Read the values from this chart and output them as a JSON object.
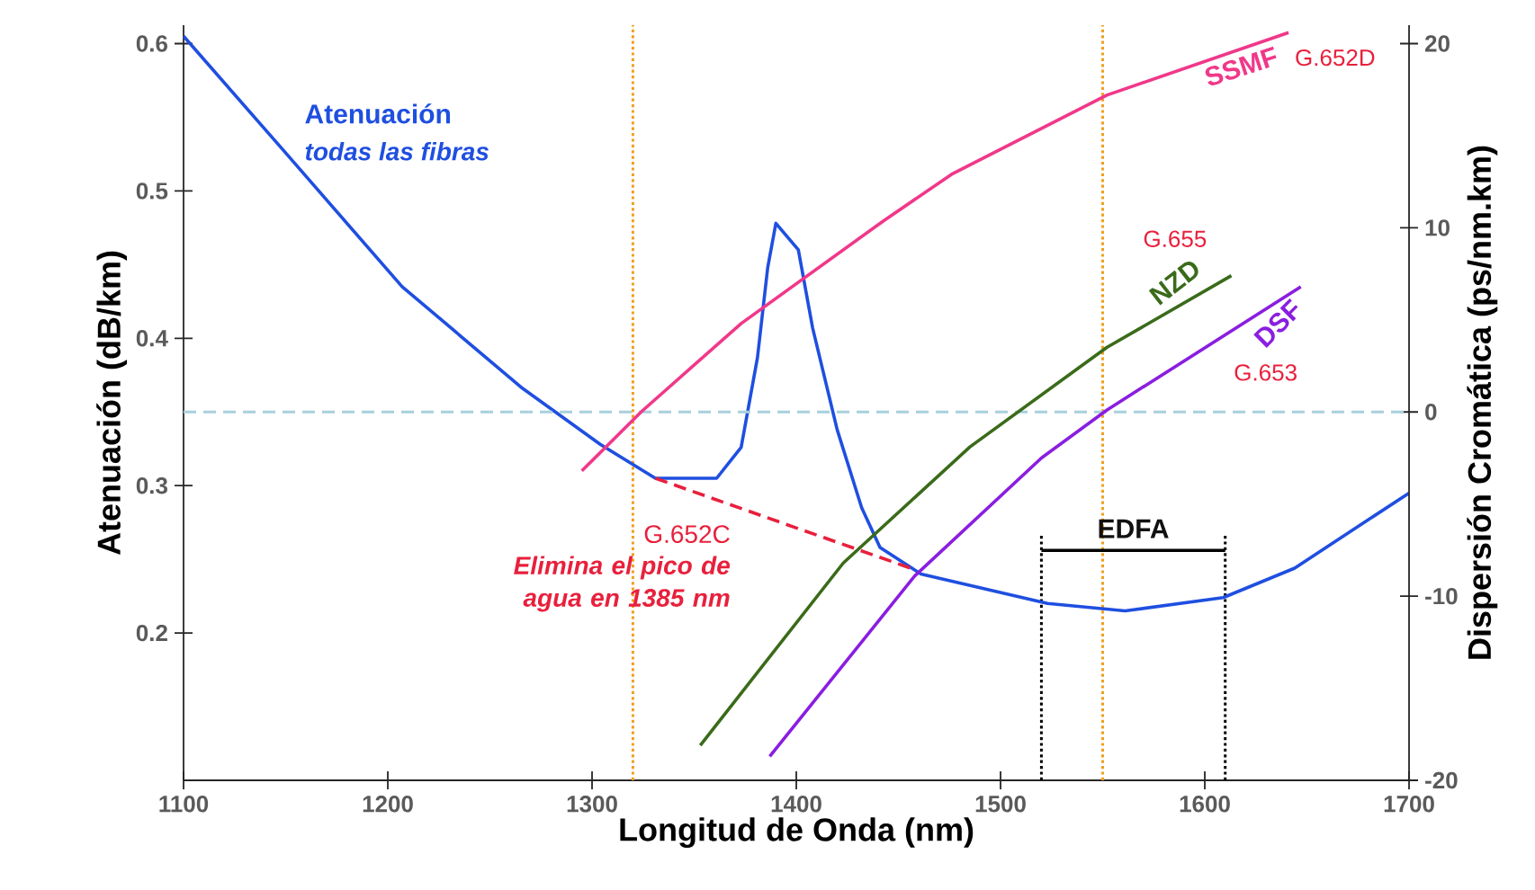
{
  "chart_data": {
    "type": "line",
    "xlabel": "Longitud de Onda (nm)",
    "ylabel": "Atenuación (dB/km)",
    "y2label": "Dispersión Cromática (ps/nm.km)",
    "xlim": [
      1100,
      1700
    ],
    "xticks": [
      1100,
      1200,
      1300,
      1400,
      1500,
      1600,
      1700
    ],
    "ylim": [
      0.1,
      0.6125
    ],
    "yticks": [
      0.2,
      0.3,
      0.4,
      0.5,
      0.6
    ],
    "y2lim": [
      -20,
      21
    ],
    "y2ticks": [
      -20,
      -10,
      0,
      10,
      20
    ],
    "series": [
      {
        "name": "Atenuación",
        "type": "line",
        "axis": "y",
        "color": "#1f4fe0",
        "line_style": "solid",
        "x": [
          1100,
          1148,
          1207,
          1266,
          1304,
          1331,
          1361,
          1373,
          1381,
          1386,
          1390,
          1401,
          1408,
          1420,
          1432,
          1441,
          1461,
          1523,
          1561,
          1609,
          1644,
          1700
        ],
        "values": [
          0.605,
          0.529,
          0.435,
          0.366,
          0.328,
          0.305,
          0.305,
          0.326,
          0.387,
          0.448,
          0.478,
          0.46,
          0.407,
          0.338,
          0.285,
          0.258,
          0.24,
          0.22,
          0.215,
          0.224,
          0.244,
          0.295
        ]
      },
      {
        "type": "line",
        "axis": "y",
        "color": "#e8203c",
        "line_style": "dashed",
        "x": [
          1331,
          1458
        ],
        "values": [
          0.305,
          0.243
        ]
      },
      {
        "name": "SSMF",
        "type": "line",
        "axis": "y2",
        "color": "#f0388a",
        "line_style": "solid",
        "x": [
          1295,
          1324,
          1373,
          1443,
          1476,
          1552,
          1641
        ],
        "values": [
          -3.2,
          0,
          4.8,
          10.4,
          12.9,
          17.2,
          20.6
        ]
      },
      {
        "name": "NZD",
        "type": "line",
        "axis": "y2",
        "color": "#3a6b1a",
        "line_style": "solid",
        "x": [
          1353,
          1423,
          1485,
          1552,
          1613
        ],
        "values": [
          -18.1,
          -8.2,
          -1.9,
          3.5,
          7.4
        ]
      },
      {
        "name": "DSF",
        "type": "line",
        "axis": "y2",
        "color": "#8a1ee0",
        "line_style": "solid",
        "x": [
          1387,
          1458,
          1520,
          1552,
          1647
        ],
        "values": [
          -18.7,
          -8.9,
          -2.5,
          0.1,
          6.8
        ]
      },
      {
        "name": "EDFA",
        "type": "line",
        "axis": "y",
        "color": "#000000",
        "line_style": "solid",
        "x": [
          1520,
          1610
        ],
        "values": [
          0.256,
          0.256
        ]
      }
    ],
    "ref_lines": [
      {
        "axis": "x",
        "value": 1320,
        "color": "#f0a020",
        "line_style": "dotted"
      },
      {
        "axis": "x",
        "value": 1550,
        "color": "#f0a020",
        "line_style": "dotted"
      },
      {
        "axis": "x",
        "value": 1520,
        "color": "#000000",
        "line_style": "dotted"
      },
      {
        "axis": "x",
        "value": 1610,
        "color": "#000000",
        "line_style": "dotted"
      },
      {
        "axis": "y2",
        "value": 0,
        "color": "#a8d0dc",
        "line_style": "dashed"
      }
    ],
    "annotations": [
      "todas las fibras",
      "G.652C",
      "Elimina el pico de agua en 1385 nm",
      "G.652D",
      "G.655",
      "G.653"
    ]
  }
}
